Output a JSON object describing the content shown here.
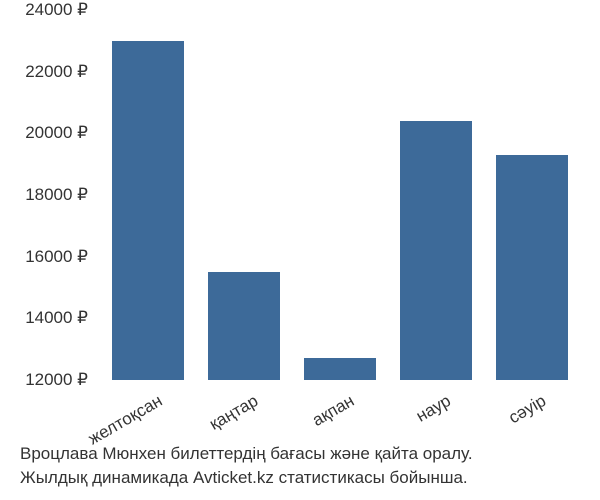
{
  "chart": {
    "type": "bar",
    "categories": [
      "желтоқсан",
      "қаңтар",
      "ақпан",
      "наур",
      "сәуір"
    ],
    "values": [
      23000,
      15500,
      12700,
      20400,
      19300
    ],
    "bar_color": "#3d6a99",
    "background_color": "#ffffff",
    "text_color": "#333333",
    "ylim": [
      12000,
      24000
    ],
    "yticks": [
      12000,
      14000,
      16000,
      18000,
      20000,
      22000,
      24000
    ],
    "ytick_labels": [
      "12000 ₽",
      "14000 ₽",
      "16000 ₽",
      "18000 ₽",
      "20000 ₽",
      "22000 ₽",
      "24000 ₽"
    ],
    "bar_width_ratio": 0.75,
    "font_size": 17,
    "x_label_rotation": -30
  },
  "caption": {
    "line1": "Вроцлава Мюнхен билеттердің бағасы және қайта оралу.",
    "line2": "Жылдық динамикада Avticket.kz статистикасы бойынша."
  }
}
